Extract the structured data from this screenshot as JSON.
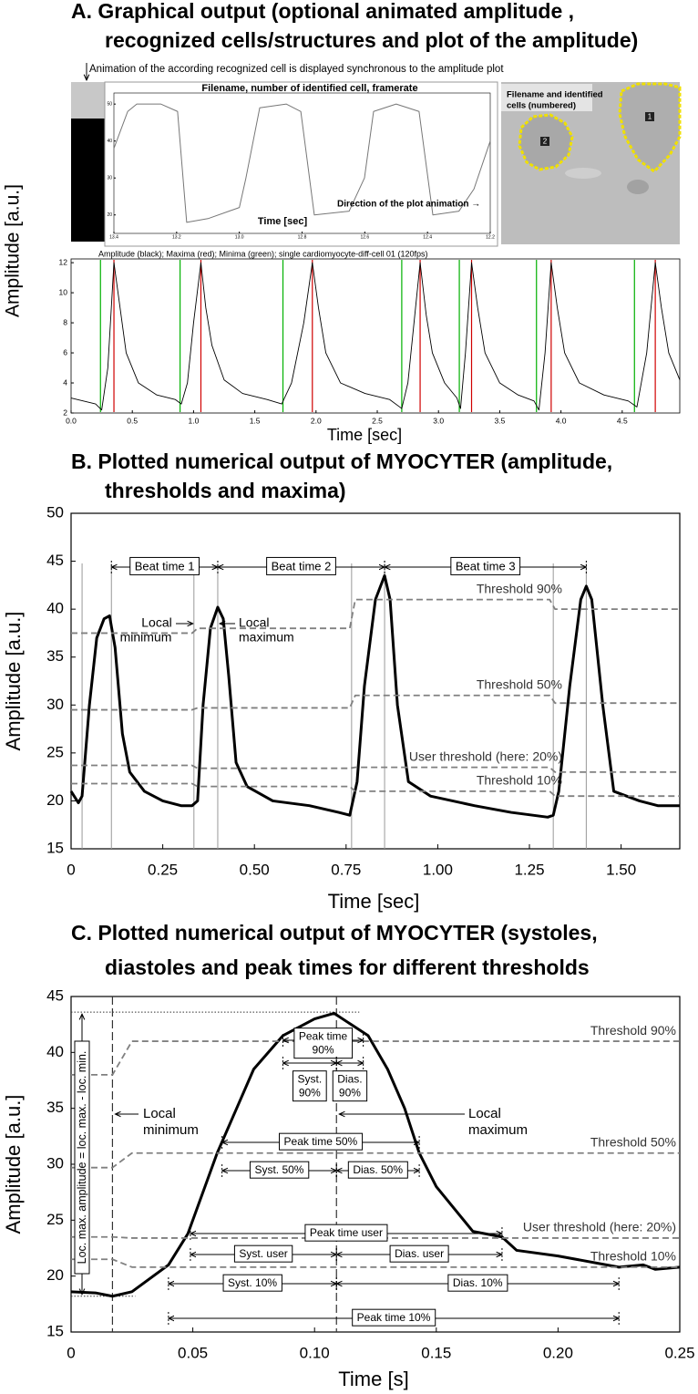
{
  "headings": {
    "a": [
      "A. Graphical output (optional animated amplitude ,",
      "recognized cells/structures and plot of the amplitude)"
    ],
    "b": [
      "B. Plotted numerical output of MYOCYTER (amplitude,",
      "thresholds and maxima)"
    ],
    "c": [
      "C. Plotted numerical output of MYOCYTER (systoles,",
      "diastoles and peak times for different thresholds"
    ]
  },
  "panel_a": {
    "animation_note": "Animation of the according recognized cell is displayed synchronous to the amplitude plot",
    "cell_image": {
      "label": [
        "Filename and identified",
        "cells (numbered)"
      ],
      "cells": [
        "2",
        "1"
      ]
    }
  },
  "chart_data": [
    {
      "type": "line",
      "title": "Filename, number of identified cell, framerate",
      "x_label": "Time [sec]",
      "annotation": "Direction of the plot animation →",
      "xlim": [
        13.4,
        12.2
      ],
      "ylim": [
        15,
        53
      ],
      "xticks": [
        13.4,
        13.2,
        {
          "value": 13.0,
          "label": "13.0"
        },
        12.8,
        12.6,
        12.4,
        12.2
      ],
      "yticks": [
        20,
        30,
        40,
        50
      ],
      "series": [
        {
          "color": "#777777",
          "x": [
            13.4,
            13.356,
            13.327,
            13.25,
            13.197,
            13.168,
            13.1,
            13.0,
            12.979,
            12.935,
            12.85,
            12.804,
            12.761,
            12.65,
            12.601,
            12.572,
            12.5,
            12.427,
            12.383,
            12.3,
            12.252,
            12.2
          ],
          "values": [
            38,
            48,
            50,
            50,
            48,
            18,
            19,
            22,
            30,
            49,
            50,
            48,
            20,
            21,
            30,
            48,
            50,
            48,
            20,
            21,
            27,
            40
          ]
        }
      ]
    },
    {
      "type": "line",
      "title": "Amplitude (black); Maxima (red);  Minima (green);     single cardiomyocyte-diff-cell 01 (120fps)",
      "x_label": "Time [sec]",
      "y_label": "Amplitude [a.u.]",
      "xlim": [
        0,
        4.97
      ],
      "ylim": [
        2,
        12.25
      ],
      "xticks": [
        {
          "value": 0,
          "label": "0.0"
        },
        0.5,
        {
          "value": 1,
          "label": "1.0"
        },
        1.5,
        {
          "value": 2,
          "label": "2.0"
        },
        2.5,
        {
          "value": 3,
          "label": "3.0"
        },
        3.5,
        {
          "value": 4,
          "label": "4.0"
        },
        4.5
      ],
      "yticks": [
        2,
        4,
        6,
        8,
        10,
        12
      ],
      "series": [
        {
          "color": "#000000",
          "x": [
            0,
            0.1,
            0.2,
            0.25,
            0.3,
            0.35,
            0.4,
            0.45,
            0.55,
            0.7,
            0.85,
            0.9,
            0.95,
            1.0,
            1.06,
            1.1,
            1.15,
            1.25,
            1.4,
            1.6,
            1.72,
            1.8,
            1.9,
            1.97,
            2.02,
            2.08,
            2.2,
            2.4,
            2.6,
            2.7,
            2.75,
            2.8,
            2.85,
            2.9,
            2.95,
            3.05,
            3.15,
            3.18,
            3.22,
            3.27,
            3.32,
            3.38,
            3.5,
            3.65,
            3.78,
            3.82,
            3.87,
            3.92,
            3.97,
            4.03,
            4.15,
            4.35,
            4.55,
            4.62,
            4.7,
            4.77,
            4.82,
            4.88,
            4.97
          ],
          "values": [
            3.0,
            2.8,
            2.6,
            2.2,
            5,
            12,
            9,
            6,
            4,
            3.2,
            2.9,
            2.6,
            4,
            8,
            12,
            9,
            6.5,
            4.2,
            3.3,
            2.9,
            2.6,
            4,
            8,
            12,
            9,
            6,
            4,
            3.3,
            2.9,
            2.3,
            4,
            8,
            12,
            8.5,
            6,
            4,
            3.0,
            2.3,
            6,
            12,
            9,
            6,
            4,
            3.2,
            2.8,
            2.2,
            6,
            12,
            9,
            6,
            4,
            3.2,
            2.8,
            2.4,
            6,
            12,
            9,
            6,
            4.2
          ]
        }
      ],
      "maxima": {
        "color": "#d00000",
        "x": [
          0.35,
          1.06,
          1.97,
          2.85,
          3.27,
          3.92,
          4.77
        ]
      },
      "minima": {
        "color": "#00b000",
        "x": [
          0.24,
          0.89,
          1.73,
          2.7,
          3.17,
          3.8,
          4.6
        ]
      }
    },
    {
      "type": "line",
      "x_label": "Time [sec]",
      "y_label": "Amplitude [a.u.]",
      "xlim": [
        0,
        1.66
      ],
      "ylim": [
        15,
        50
      ],
      "xticks": [
        0,
        0.25,
        {
          "value": 0.5,
          "label": "0.50"
        },
        0.75,
        {
          "value": 1,
          "label": "1.00"
        },
        1.25,
        {
          "value": 1.5,
          "label": "1.50"
        }
      ],
      "yticks": [
        15,
        20,
        25,
        30,
        35,
        40,
        45,
        50
      ],
      "series": [
        {
          "color": "#000000",
          "x": [
            0,
            0.02,
            0.03,
            0.05,
            0.07,
            0.09,
            0.105,
            0.12,
            0.14,
            0.16,
            0.2,
            0.25,
            0.3,
            0.33,
            0.345,
            0.36,
            0.38,
            0.4,
            0.415,
            0.43,
            0.45,
            0.48,
            0.55,
            0.65,
            0.73,
            0.76,
            0.78,
            0.8,
            0.83,
            0.855,
            0.87,
            0.89,
            0.92,
            0.98,
            1.1,
            1.2,
            1.3,
            1.315,
            1.33,
            1.36,
            1.39,
            1.405,
            1.42,
            1.45,
            1.48,
            1.55,
            1.6,
            1.66
          ],
          "values": [
            21,
            19.8,
            20.5,
            30,
            37,
            39,
            39.3,
            36,
            27,
            23,
            21,
            20,
            19.5,
            19.5,
            20,
            30,
            38,
            40.2,
            39,
            33,
            24,
            21.5,
            20,
            19.5,
            18.8,
            18.5,
            22,
            32,
            41,
            43.5,
            41,
            30,
            22,
            20.5,
            19.5,
            18.8,
            18.3,
            18.5,
            21,
            32,
            41,
            42.4,
            41,
            30,
            21,
            20,
            19.5,
            19.5
          ]
        },
        {
          "name": "Threshold 90%",
          "color": "#808080",
          "dashed": true,
          "x": [
            0,
            0.33,
            0.345,
            0.76,
            0.775,
            1.305,
            1.32,
            1.66
          ],
          "values": [
            37.5,
            37.5,
            38,
            38,
            41,
            41,
            40,
            40
          ]
        },
        {
          "name": "Threshold 50%",
          "color": "#808080",
          "dashed": true,
          "x": [
            0,
            0.33,
            0.345,
            0.76,
            0.775,
            1.305,
            1.32,
            1.66
          ],
          "values": [
            29.5,
            29.5,
            29.7,
            29.7,
            31,
            31,
            30.2,
            30.2
          ]
        },
        {
          "name": "User threshold (here: 20%)",
          "color": "#808080",
          "dashed": true,
          "x": [
            0,
            0.33,
            0.345,
            0.76,
            0.775,
            1.305,
            1.32,
            1.66
          ],
          "values": [
            23.7,
            23.7,
            23.4,
            23.4,
            23.5,
            23.5,
            23,
            23
          ]
        },
        {
          "name": "Threshold 10%",
          "color": "#808080",
          "dashed": true,
          "x": [
            0,
            0.33,
            0.345,
            0.76,
            0.775,
            1.305,
            1.32,
            1.66
          ],
          "values": [
            21.8,
            21.8,
            21.5,
            21.5,
            21,
            21,
            20.5,
            20.5
          ]
        }
      ],
      "markers_x": [
        0.03,
        0.11,
        0.335,
        0.4,
        0.765,
        0.855,
        1.315,
        1.405
      ],
      "marker_color": "#999999",
      "intervals": [
        {
          "label": [
            "Beat time 1"
          ],
          "start": 0.11,
          "end": 0.4
        },
        {
          "label": [
            "Beat time 2"
          ],
          "start": 0.4,
          "end": 0.855
        },
        {
          "label": [
            "Beat time 3"
          ],
          "start": 0.855,
          "end": 1.405
        }
      ],
      "annotations": [
        {
          "lines": [
            "Local",
            "minimum"
          ]
        },
        {
          "lines": [
            "Local",
            "maximum"
          ]
        }
      ]
    },
    {
      "type": "line",
      "x_label": "Time [s]",
      "y_label": "Amplitude [a.u.]",
      "xlim": [
        0,
        0.25
      ],
      "ylim": [
        15,
        45
      ],
      "xticks": [
        0,
        0.05,
        {
          "value": 0.1,
          "label": "0.10"
        },
        0.15,
        {
          "value": 0.2,
          "label": "0.20"
        },
        0.25
      ],
      "yticks": [
        15,
        20,
        25,
        30,
        35,
        40,
        45
      ],
      "series": [
        {
          "color": "#000000",
          "x": [
            0,
            0.01,
            0.017,
            0.025,
            0.04,
            0.048,
            0.06,
            0.068,
            0.075,
            0.087,
            0.1,
            0.108,
            0.115,
            0.122,
            0.13,
            0.137,
            0.143,
            0.15,
            0.165,
            0.177,
            0.183,
            0.2,
            0.225,
            0.235,
            0.24,
            0.25
          ],
          "values": [
            18.6,
            18.5,
            18.2,
            18.6,
            21,
            23.8,
            31,
            35,
            38.5,
            41.5,
            43,
            43.5,
            42.5,
            41.5,
            38.5,
            35,
            31,
            28,
            24,
            23.5,
            22.3,
            21.8,
            20.8,
            21,
            20.6,
            20.8
          ]
        },
        {
          "name": "Threshold 90%",
          "color": "#808080",
          "dashed": true,
          "x": [
            0,
            0.017,
            0.025,
            0.25
          ],
          "values": [
            38,
            38,
            41,
            41
          ]
        },
        {
          "name": "Threshold 50%",
          "color": "#808080",
          "dashed": true,
          "x": [
            0,
            0.017,
            0.025,
            0.25
          ],
          "values": [
            29.7,
            29.7,
            31,
            31
          ]
        },
        {
          "name": "User threshold (here: 20%)",
          "color": "#808080",
          "dashed": true,
          "x": [
            0,
            0.017,
            0.025,
            0.25
          ],
          "values": [
            23.5,
            23.5,
            23.4,
            23.4
          ]
        },
        {
          "name": "Threshold 10%",
          "color": "#808080",
          "dashed": true,
          "x": [
            0,
            0.017,
            0.025,
            0.25
          ],
          "values": [
            21.5,
            21.5,
            20.8,
            20.8
          ]
        }
      ],
      "local_min": {
        "x": 0.017,
        "y": 18.2
      },
      "local_max": {
        "x": 0.109,
        "y": 43.6
      },
      "intervals": [
        {
          "label": [
            "Peak time",
            "90%"
          ],
          "start": 0.087,
          "end": 0.12
        },
        {
          "label": [
            "Syst.",
            "90%"
          ],
          "start": 0.087,
          "end": 0.109
        },
        {
          "label": [
            "Dias.",
            "90%"
          ],
          "start": 0.109,
          "end": 0.12
        },
        {
          "label": [
            "Peak time 50%"
          ],
          "start": 0.062,
          "end": 0.143
        },
        {
          "label": [
            "Syst. 50%"
          ],
          "start": 0.062,
          "end": 0.109
        },
        {
          "label": [
            "Dias. 50%"
          ],
          "start": 0.109,
          "end": 0.143
        },
        {
          "label": [
            "Peak time user"
          ],
          "start": 0.049,
          "end": 0.177
        },
        {
          "label": [
            "Syst. user"
          ],
          "start": 0.049,
          "end": 0.109
        },
        {
          "label": [
            "Dias. user"
          ],
          "start": 0.109,
          "end": 0.177
        },
        {
          "label": [
            "Syst. 10%"
          ],
          "start": 0.04,
          "end": 0.109
        },
        {
          "label": [
            "Dias. 10%"
          ],
          "start": 0.109,
          "end": 0.225
        },
        {
          "label": [
            "Peak time 10%"
          ],
          "start": 0.04,
          "end": 0.225
        }
      ],
      "annotations": [
        {
          "lines": [
            "Local",
            "minimum"
          ]
        },
        {
          "lines": [
            "Local",
            "maximum"
          ]
        },
        {
          "lines": [
            "Loc. max. amplitude = loc. max. - loc. min."
          ]
        }
      ]
    }
  ]
}
